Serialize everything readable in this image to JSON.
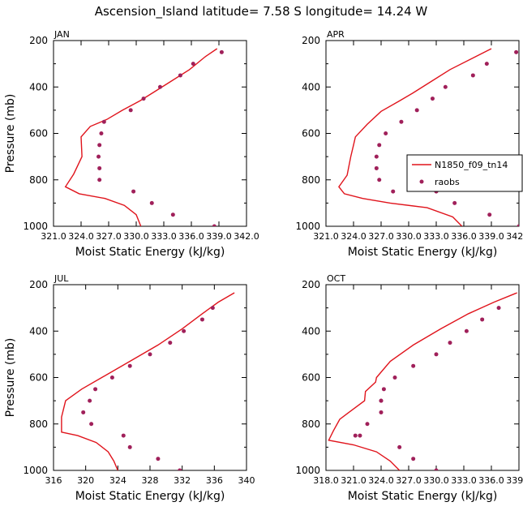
{
  "title": "Ascension_Island  latitude= 7.58 S longitude= 14.24 W",
  "colors": {
    "model": "#e0141c",
    "obs": "#a0205a",
    "axis": "#000000"
  },
  "legend": {
    "model_label": "N1850_f09_tn14",
    "obs_label": "raobs"
  },
  "chart_data": [
    {
      "type": "line",
      "panel": "JAN",
      "xlabel": "Moist Static Energy (kJ/kg)",
      "ylabel": "Pressure (mb)",
      "xlim": [
        321.0,
        342.0
      ],
      "ylim": [
        1000,
        200
      ],
      "xticks": [
        "321.0",
        "324.0",
        "327.0",
        "330.0",
        "333.0",
        "336.0",
        "339.0",
        "342.0"
      ],
      "yticks": [
        "200",
        "400",
        "600",
        "800",
        "1000"
      ],
      "series": [
        {
          "name": "N1850_f09_tn14",
          "x": [
            338.8,
            337.5,
            335.8,
            333.8,
            332.0,
            330.4,
            328.5,
            326.8,
            325.0,
            324.0,
            324.1,
            323.2,
            322.3,
            323.8,
            326.6,
            328.7,
            330.0,
            330.5
          ],
          "y": [
            235,
            270,
            325,
            375,
            420,
            460,
            500,
            540,
            570,
            615,
            700,
            775,
            830,
            860,
            880,
            910,
            950,
            1000
          ]
        },
        {
          "name": "raobs",
          "x": [
            339.3,
            336.2,
            334.8,
            332.6,
            330.8,
            329.4,
            326.5,
            326.2,
            326.0,
            325.9,
            326.0,
            326.0,
            329.7,
            331.7,
            334.0,
            338.5
          ],
          "y": [
            250,
            300,
            350,
            400,
            450,
            500,
            550,
            600,
            650,
            700,
            750,
            800,
            850,
            900,
            950,
            1000
          ]
        }
      ]
    },
    {
      "type": "line",
      "panel": "APR",
      "xlabel": "Moist Static Energy (kJ/kg)",
      "ylabel": "",
      "xlim": [
        321.0,
        342.0
      ],
      "ylim": [
        1000,
        200
      ],
      "xticks": [
        "321.0",
        "324.0",
        "327.0",
        "330.0",
        "333.0",
        "336.0",
        "339.0",
        "342.0"
      ],
      "yticks": [
        "200",
        "400",
        "600",
        "800",
        "1000"
      ],
      "series": [
        {
          "name": "N1850_f09_tn14",
          "x": [
            339.0,
            337.0,
            334.5,
            332.5,
            330.5,
            329.0,
            327.0,
            325.5,
            324.2,
            324.0,
            323.7,
            323.3,
            322.4,
            323.0,
            325.0,
            328.0,
            332.0,
            334.8,
            335.8
          ],
          "y": [
            235,
            275,
            325,
            375,
            425,
            460,
            505,
            560,
            615,
            650,
            700,
            780,
            830,
            860,
            880,
            900,
            920,
            960,
            1000
          ]
        },
        {
          "name": "raobs",
          "x": [
            341.7,
            338.5,
            337.0,
            334.0,
            332.6,
            330.9,
            329.2,
            327.5,
            326.8,
            326.5,
            326.5,
            326.8,
            328.3,
            333.0,
            335.0,
            338.8,
            342.0
          ],
          "y": [
            250,
            300,
            350,
            400,
            450,
            500,
            550,
            600,
            650,
            700,
            750,
            800,
            850,
            850,
            900,
            950,
            1000
          ]
        }
      ]
    },
    {
      "type": "line",
      "panel": "JUL",
      "xlabel": "Moist Static Energy (kJ/kg)",
      "ylabel": "Pressure (mb)",
      "xlim": [
        316,
        340
      ],
      "ylim": [
        1000,
        200
      ],
      "xticks": [
        "316",
        "320",
        "324",
        "328",
        "332",
        "336",
        "340"
      ],
      "yticks": [
        "200",
        "400",
        "600",
        "800",
        "1000"
      ],
      "series": [
        {
          "name": "N1850_f09_tn14",
          "x": [
            338.5,
            336.5,
            334.5,
            332.0,
            329.0,
            325.5,
            322.0,
            319.5,
            317.5,
            317.0,
            317.0,
            317.0,
            319.0,
            321.3,
            322.8,
            323.5,
            324.0
          ],
          "y": [
            235,
            275,
            325,
            390,
            460,
            530,
            600,
            650,
            700,
            770,
            780,
            835,
            850,
            880,
            920,
            960,
            1000
          ]
        },
        {
          "name": "raobs",
          "x": [
            335.8,
            334.5,
            332.2,
            330.5,
            328.0,
            325.5,
            323.3,
            321.2,
            320.5,
            319.7,
            320.7,
            324.7,
            325.5,
            329.0,
            331.7
          ],
          "y": [
            300,
            350,
            400,
            450,
            500,
            550,
            600,
            650,
            700,
            750,
            800,
            850,
            900,
            950,
            1000
          ]
        }
      ]
    },
    {
      "type": "line",
      "panel": "OCT",
      "xlabel": "Moist Static Energy (kJ/kg)",
      "ylabel": "",
      "xlim": [
        318.0,
        339.0
      ],
      "ylim": [
        1000,
        200
      ],
      "xticks": [
        "318.0",
        "321.0",
        "324.0",
        "327.0",
        "330.0",
        "333.0",
        "336.0",
        "339.0"
      ],
      "yticks": [
        "200",
        "400",
        "600",
        "800",
        "1000"
      ],
      "series": [
        {
          "name": "N1850_f09_tn14",
          "x": [
            338.8,
            336.3,
            333.5,
            330.5,
            327.5,
            325.0,
            323.5,
            323.4,
            322.3,
            322.2,
            320.5,
            319.5,
            318.8,
            318.3,
            321.0,
            323.5,
            325.0,
            326.0
          ],
          "y": [
            235,
            275,
            325,
            390,
            460,
            530,
            600,
            620,
            660,
            700,
            750,
            780,
            830,
            870,
            890,
            920,
            960,
            1000
          ]
        },
        {
          "name": "raobs",
          "x": [
            336.8,
            335.0,
            333.3,
            331.5,
            330.0,
            327.5,
            325.5,
            324.3,
            324.0,
            324.0,
            324.0,
            322.5,
            321.2,
            321.7,
            326.0,
            327.5,
            330.0
          ],
          "y": [
            300,
            350,
            400,
            450,
            500,
            550,
            600,
            650,
            700,
            700,
            750,
            800,
            850,
            850,
            900,
            950,
            1000
          ]
        }
      ]
    }
  ]
}
